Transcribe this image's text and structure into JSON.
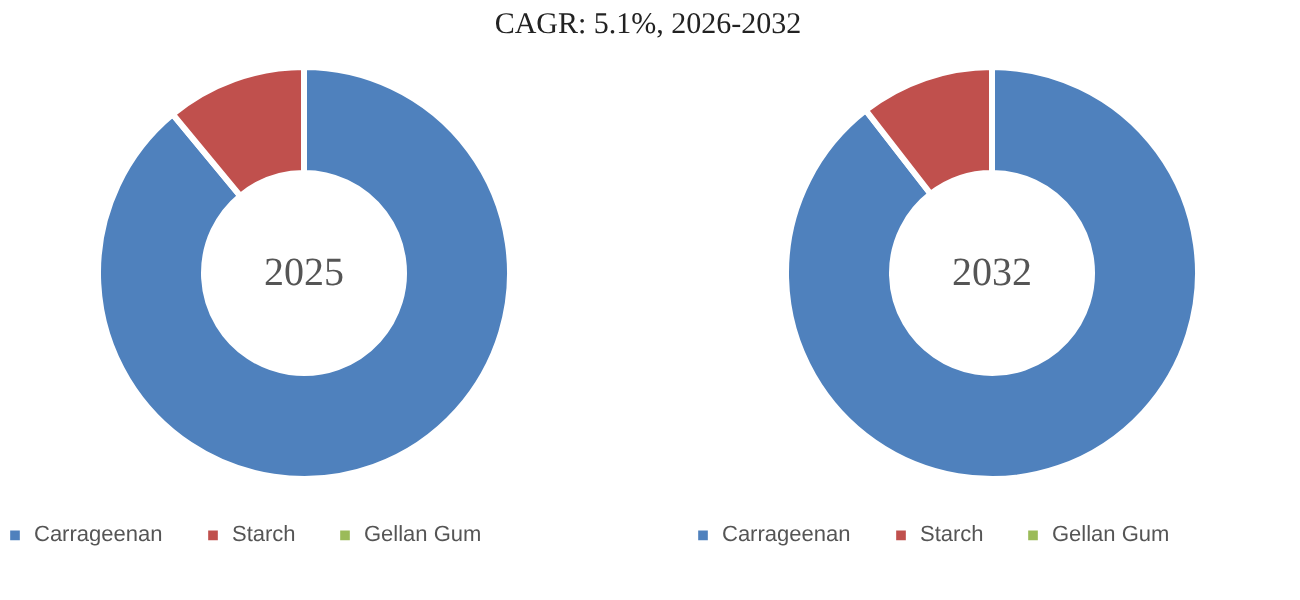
{
  "chart_data": [
    {
      "type": "donut",
      "title": "CAGR:  5.1%, 2026-2032",
      "annotations": [
        "2025"
      ],
      "categories": [
        "Carrageenan",
        "Starch",
        "Gellan Gum"
      ],
      "values": [
        89,
        11,
        0
      ],
      "colors": [
        "#4f81bd",
        "#c0504d",
        "#9bbb59"
      ],
      "legend": "bottom"
    },
    {
      "type": "donut",
      "annotations": [
        "2032"
      ],
      "categories": [
        "Carrageenan",
        "Starch",
        "Gellan Gum"
      ],
      "values": [
        89.5,
        10.5,
        0
      ],
      "colors": [
        "#4f81bd",
        "#c0504d",
        "#9bbb59"
      ],
      "legend": "bottom"
    }
  ]
}
